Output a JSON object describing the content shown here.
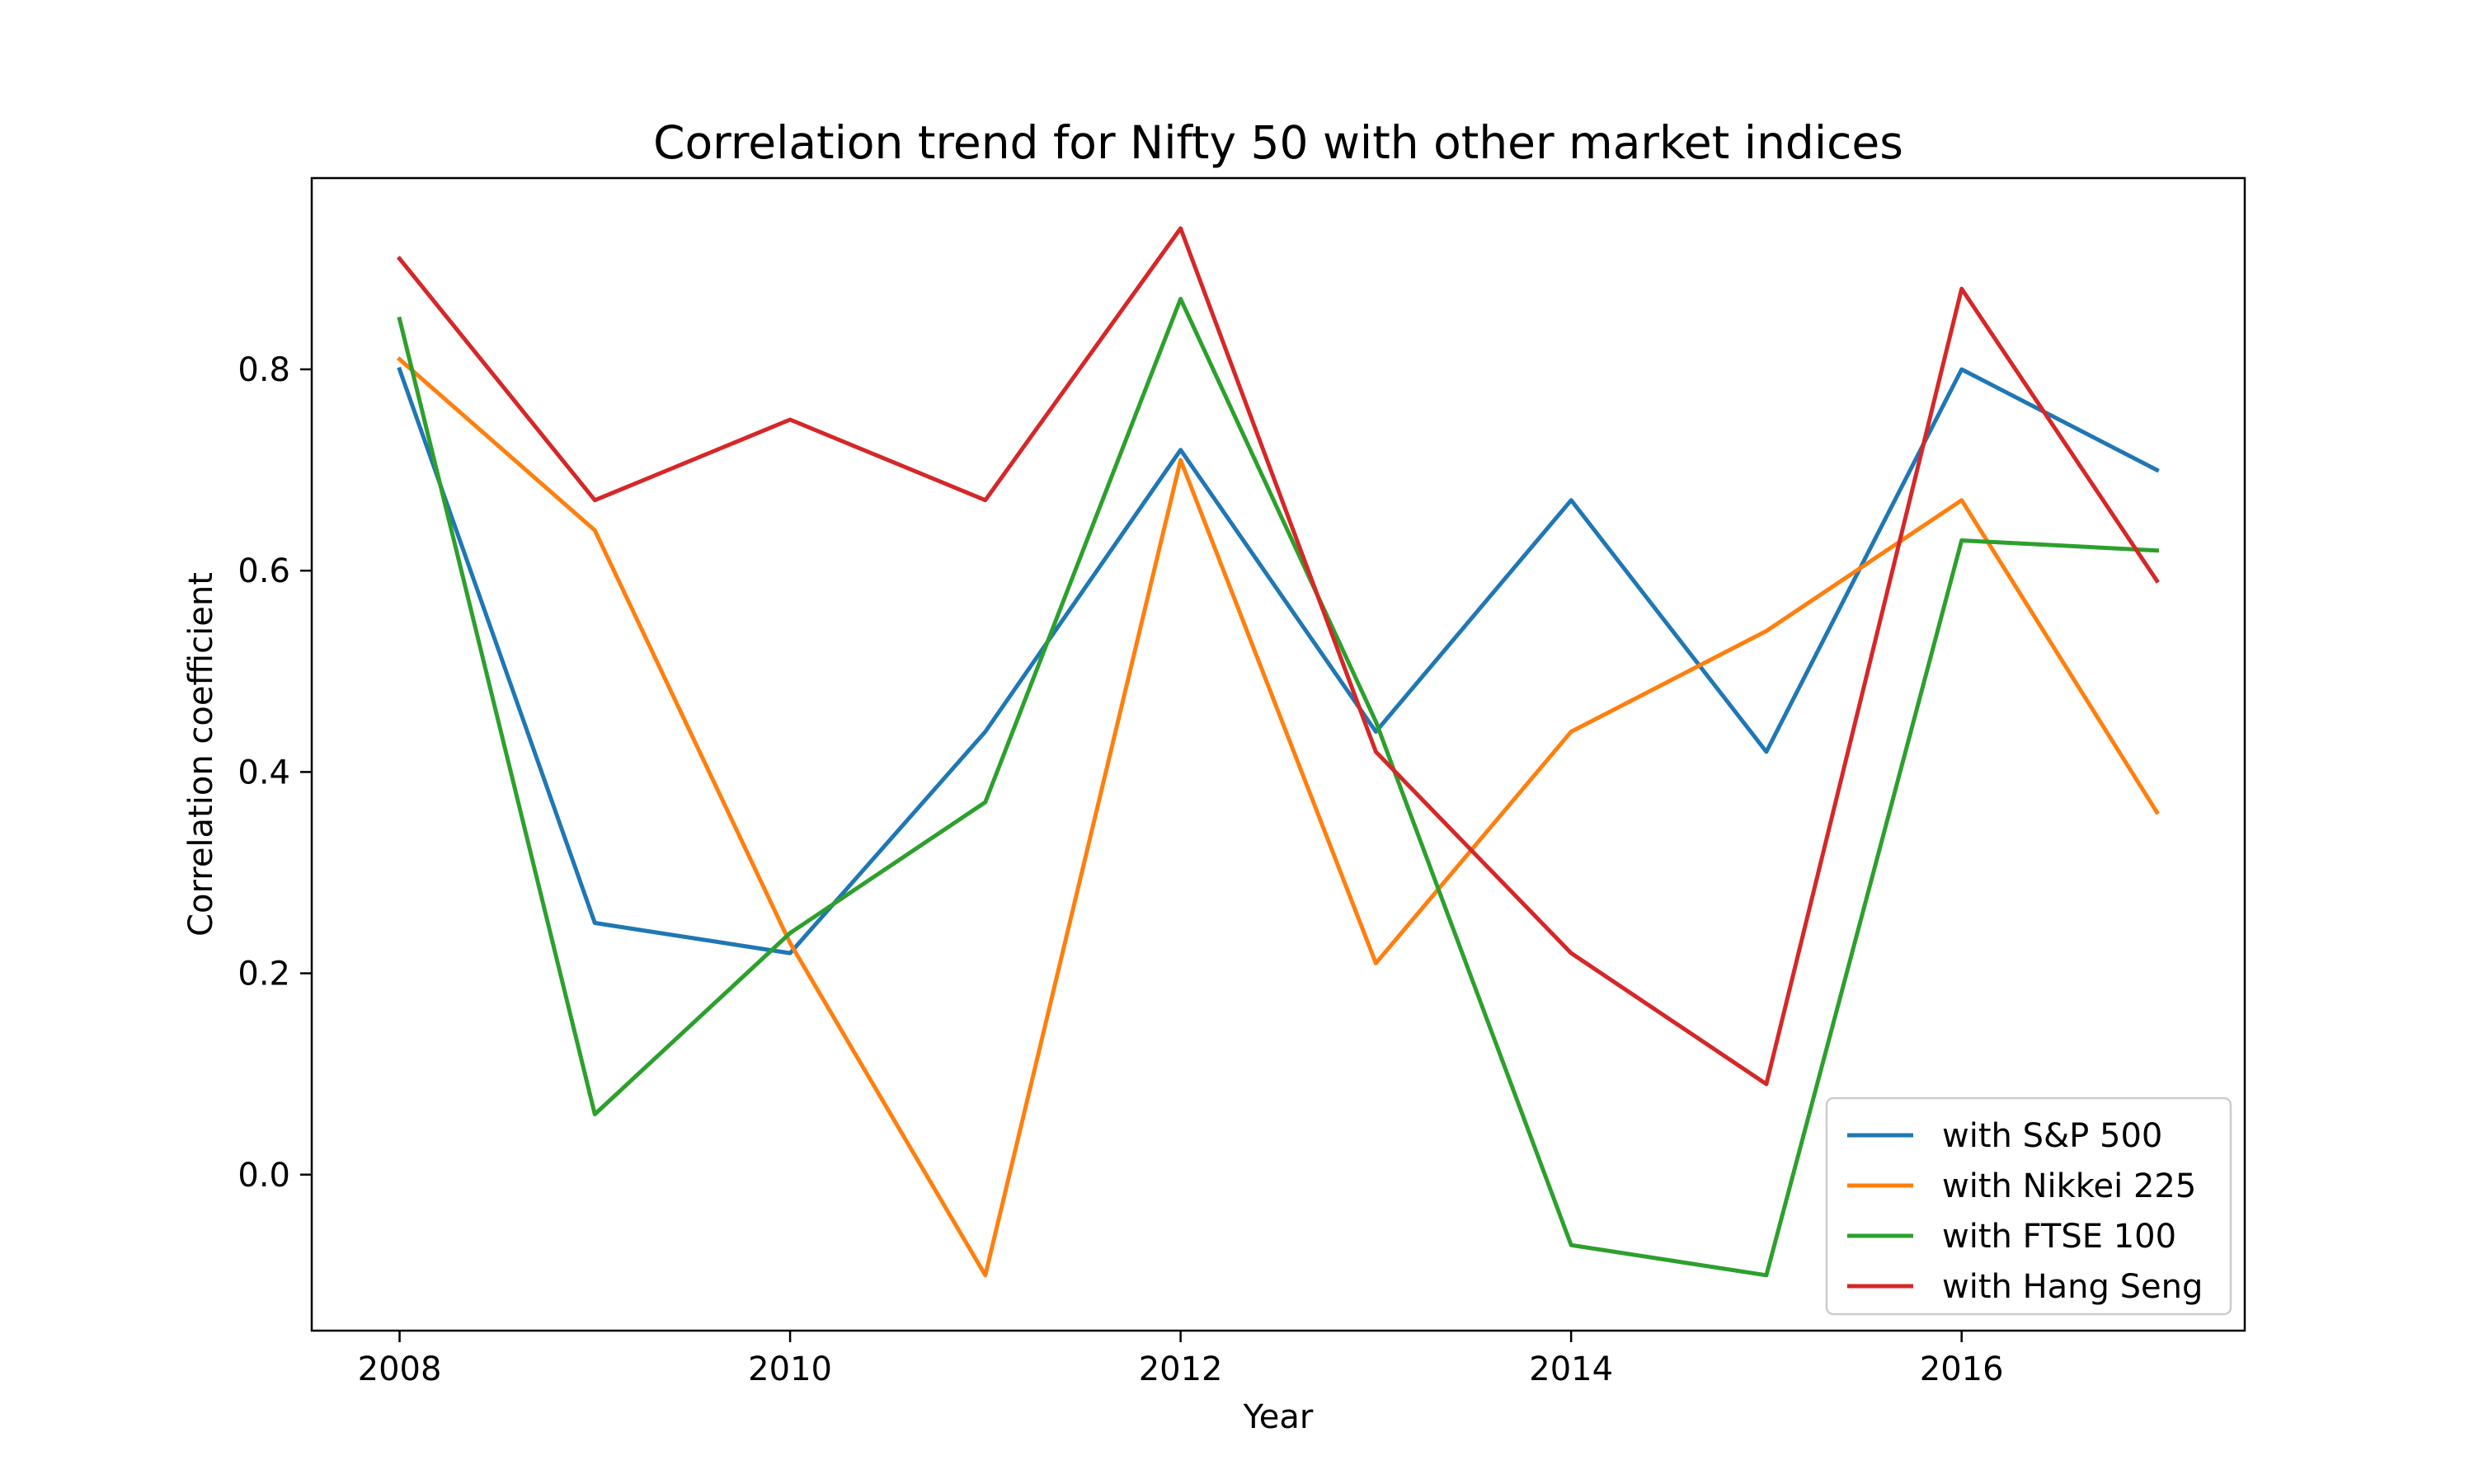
{
  "chart_data": {
    "type": "line",
    "title": "Correlation trend for Nifty 50 with other market indices",
    "xlabel": "Year",
    "ylabel": "Correlation coefficient",
    "x": [
      2008,
      2009,
      2010,
      2011,
      2012,
      2013,
      2014,
      2015,
      2016,
      2017
    ],
    "xlim": [
      2007.55,
      2017.45
    ],
    "ylim": [
      -0.155,
      0.99
    ],
    "xticks": [
      2008,
      2010,
      2012,
      2014,
      2016
    ],
    "xtick_labels": [
      "2008",
      "2010",
      "2012",
      "2014",
      "2016"
    ],
    "yticks": [
      0.0,
      0.2,
      0.4,
      0.6,
      0.8
    ],
    "ytick_labels": [
      "0.0",
      "0.2",
      "0.4",
      "0.6",
      "0.8"
    ],
    "grid": false,
    "legend_position": "bottom-right",
    "series": [
      {
        "name": "with S&P 500",
        "color": "#1f77b4",
        "values": [
          0.8,
          0.25,
          0.22,
          0.44,
          0.72,
          0.44,
          0.67,
          0.42,
          0.8,
          0.7
        ]
      },
      {
        "name": "with Nikkei 225",
        "color": "#ff7f0e",
        "values": [
          0.81,
          0.64,
          0.23,
          -0.1,
          0.71,
          0.21,
          0.44,
          0.54,
          0.67,
          0.36
        ]
      },
      {
        "name": "with FTSE 100",
        "color": "#2ca02c",
        "values": [
          0.85,
          0.06,
          0.24,
          0.37,
          0.87,
          0.45,
          -0.07,
          -0.1,
          0.63,
          0.62
        ]
      },
      {
        "name": "with Hang Seng",
        "color": "#d62728",
        "values": [
          0.91,
          0.67,
          0.75,
          0.67,
          0.94,
          0.42,
          0.22,
          0.09,
          0.88,
          0.59
        ]
      }
    ]
  }
}
